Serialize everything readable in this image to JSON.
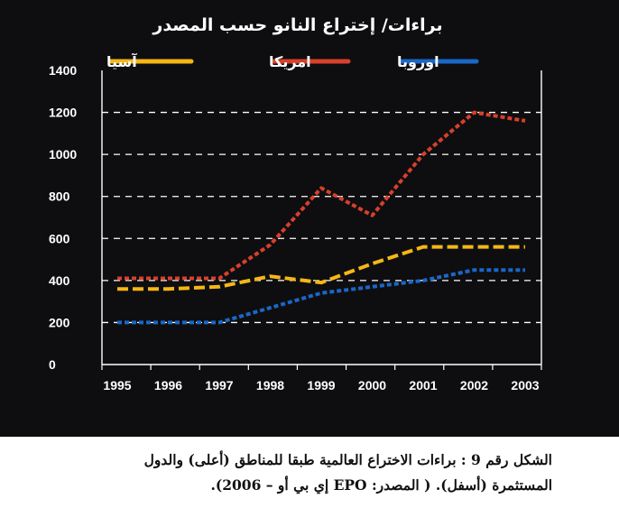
{
  "chart_data": {
    "type": "line",
    "title": "براءات/ إختراع النانو حسب المصدر",
    "x": [
      "1995",
      "1996",
      "1997",
      "1998",
      "1999",
      "2000",
      "2001",
      "2002",
      "2003"
    ],
    "series": [
      {
        "name": "اوروبا",
        "color": "#1a67c8",
        "values": [
          200,
          200,
          200,
          270,
          340,
          370,
          400,
          450,
          450
        ]
      },
      {
        "name": "امريكا",
        "color": "#d8402b",
        "values": [
          410,
          410,
          410,
          570,
          840,
          710,
          1000,
          1200,
          1160
        ]
      },
      {
        "name": "آسيا",
        "color": "#f5b716",
        "values": [
          360,
          360,
          370,
          420,
          390,
          480,
          560,
          560,
          560
        ]
      }
    ],
    "yticks": [
      "0",
      "200",
      "400",
      "600",
      "800",
      "1000",
      "1200",
      "1400"
    ],
    "ylim": [
      0,
      1400
    ],
    "grid": true,
    "legend": "top"
  },
  "caption": {
    "line1": "الشكل رقم 9 : براءات الاختراع العالمية طبقا للمناطق (أعلى) والدول",
    "line2": "المستثمرة (أسفل). ( المصدر: EPO إي بي أو – 2006)."
  }
}
